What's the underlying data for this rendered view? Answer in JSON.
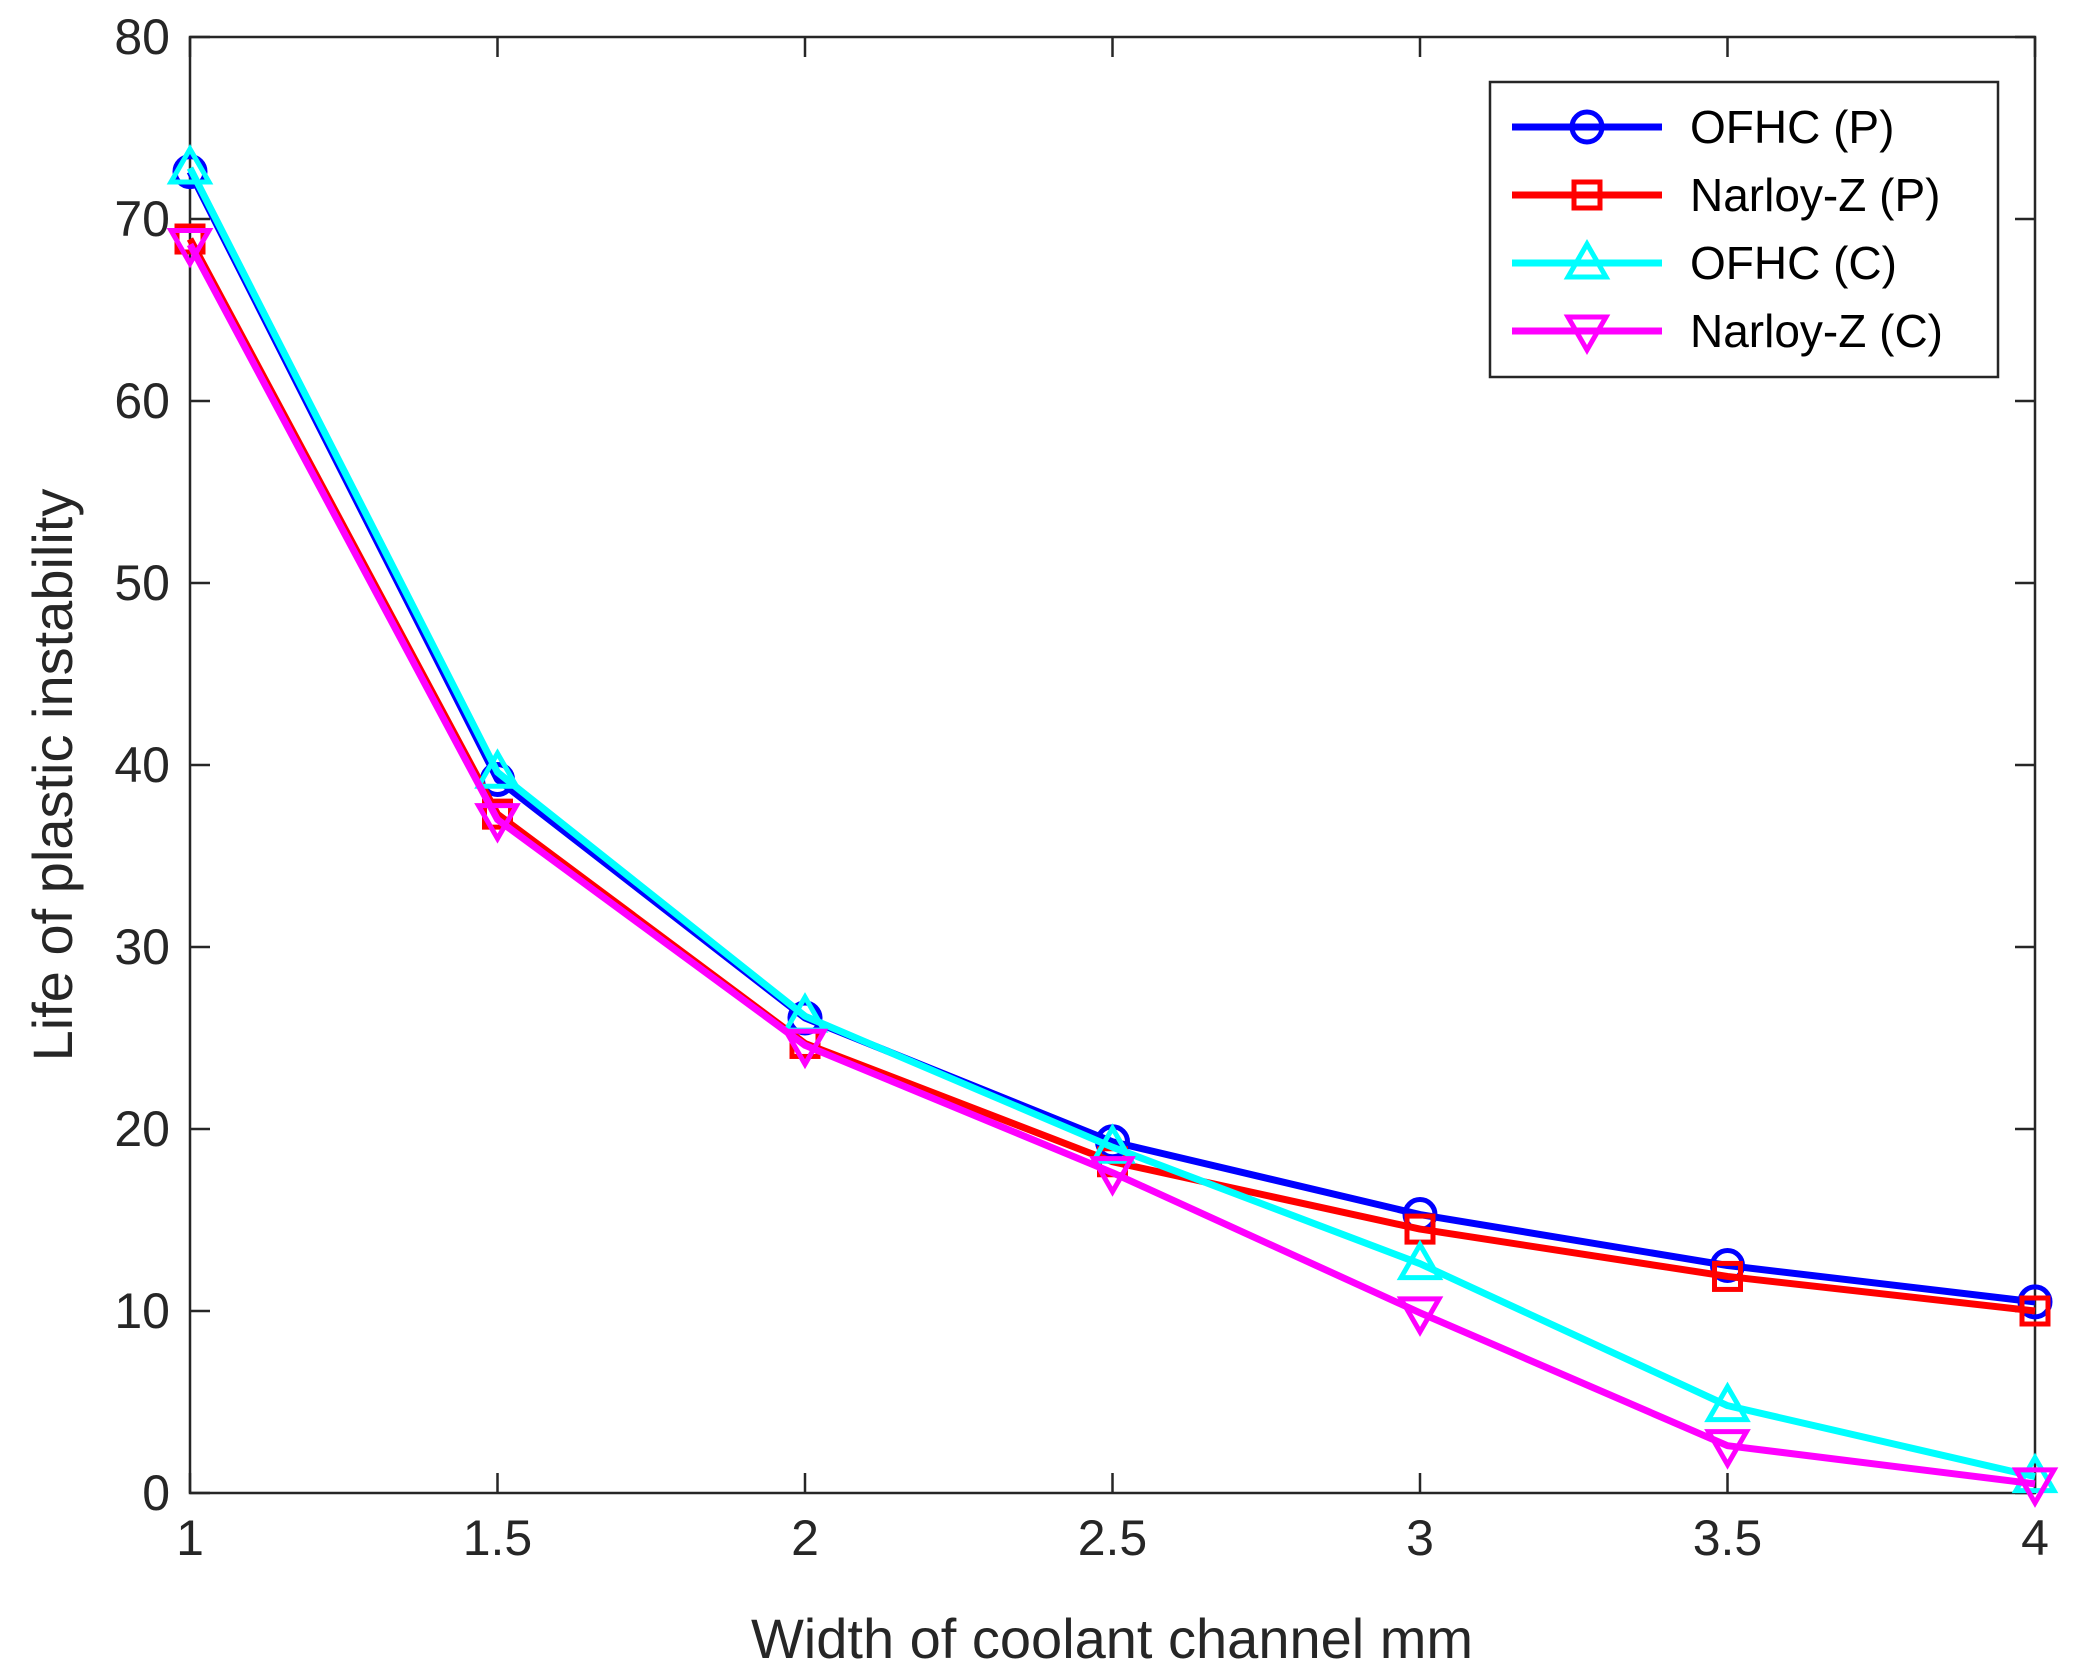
{
  "chart_data": {
    "type": "line",
    "title": "",
    "xlabel": "Width of coolant channel mm",
    "ylabel": "Life of plastic instability",
    "xlim": [
      1,
      4
    ],
    "ylim": [
      0,
      80
    ],
    "xticks": [
      1,
      1.5,
      2,
      2.5,
      3,
      3.5,
      4
    ],
    "xtick_labels": [
      "1",
      "1.5",
      "2",
      "2.5",
      "3",
      "3.5",
      "4"
    ],
    "yticks": [
      0,
      10,
      20,
      30,
      40,
      50,
      60,
      70,
      80
    ],
    "ytick_labels": [
      "0",
      "10",
      "20",
      "30",
      "40",
      "50",
      "60",
      "70",
      "80"
    ],
    "grid": false,
    "legend_position": "top-right",
    "x": [
      1,
      1.5,
      2,
      2.5,
      3,
      3.5,
      4
    ],
    "series": [
      {
        "name": "OFHC (P)",
        "color": "#0000ff",
        "marker": "circle",
        "values": [
          72.6,
          39.2,
          26.1,
          19.3,
          15.3,
          12.5,
          10.5
        ]
      },
      {
        "name": "Narloy-Z (P)",
        "color": "#ff0000",
        "marker": "square",
        "values": [
          68.9,
          37.3,
          24.7,
          18.2,
          14.5,
          11.9,
          10.0
        ]
      },
      {
        "name": "OFHC (C)",
        "color": "#00ffff",
        "marker": "triangle-up",
        "values": [
          72.8,
          39.6,
          26.2,
          19.0,
          12.6,
          4.8,
          0.9
        ]
      },
      {
        "name": "Narloy-Z (C)",
        "color": "#ff00ff",
        "marker": "triangle-down",
        "values": [
          68.6,
          37.0,
          24.6,
          17.6,
          9.9,
          2.6,
          0.5
        ]
      }
    ]
  }
}
